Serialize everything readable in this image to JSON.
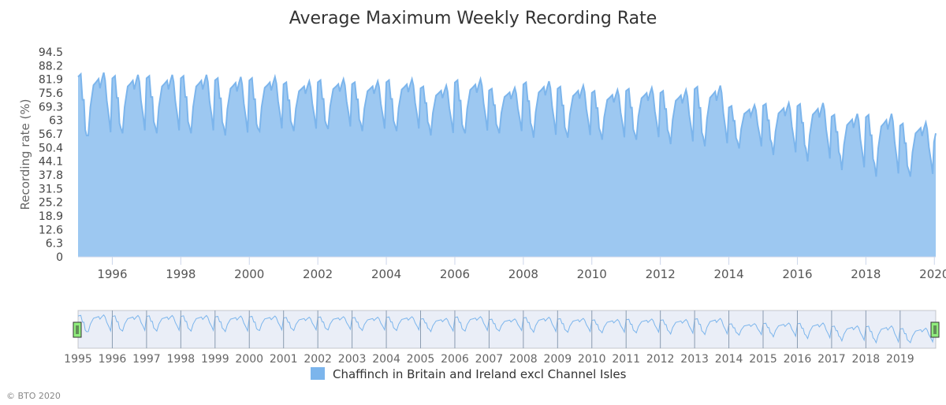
{
  "chart_data": {
    "type": "area",
    "title": "Average Maximum Weekly Recording Rate",
    "xlabel": "",
    "ylabel": "Recording rate (%)",
    "ylim": [
      0,
      94.5
    ],
    "yticks": [
      "94.5",
      "88.2",
      "81.9",
      "75.6",
      "69.3",
      "63",
      "56.7",
      "50.4",
      "44.1",
      "37.8",
      "31.5",
      "25.2",
      "18.9",
      "12.6",
      "6.3",
      "0"
    ],
    "xlim": [
      1995.0,
      2020.04
    ],
    "xticks": [
      "1996",
      "1998",
      "2000",
      "2002",
      "2004",
      "2006",
      "2008",
      "2010",
      "2012",
      "2014",
      "2016",
      "2018",
      "2020"
    ],
    "navigator_ticks": [
      "1995",
      "1996",
      "1997",
      "1998",
      "1999",
      "2000",
      "2001",
      "2002",
      "2003",
      "2004",
      "2005",
      "2006",
      "2007",
      "2008",
      "2009",
      "2010",
      "2011",
      "2012",
      "2013",
      "2014",
      "2015",
      "2016",
      "2017",
      "2018",
      "2019"
    ],
    "series": [
      {
        "name": "Chaffinch in Britain and Ireland excl Channel Isles",
        "color": "#7cb5ec",
        "annual_peaks": [
          85,
          84,
          84,
          84,
          83,
          83,
          81,
          82,
          81,
          82,
          79,
          82,
          78,
          81,
          79,
          77,
          78,
          77,
          79,
          70,
          71,
          71,
          66,
          66,
          62
        ],
        "annual_troughs": [
          52,
          56,
          57,
          57,
          57,
          56,
          58,
          58,
          59,
          58,
          58,
          56,
          57,
          57,
          55,
          55,
          54,
          54,
          52,
          51,
          50,
          47,
          44,
          40,
          37
        ],
        "end_value": 57
      }
    ],
    "legend": "bottom-center",
    "credit": "© BTO 2020"
  }
}
